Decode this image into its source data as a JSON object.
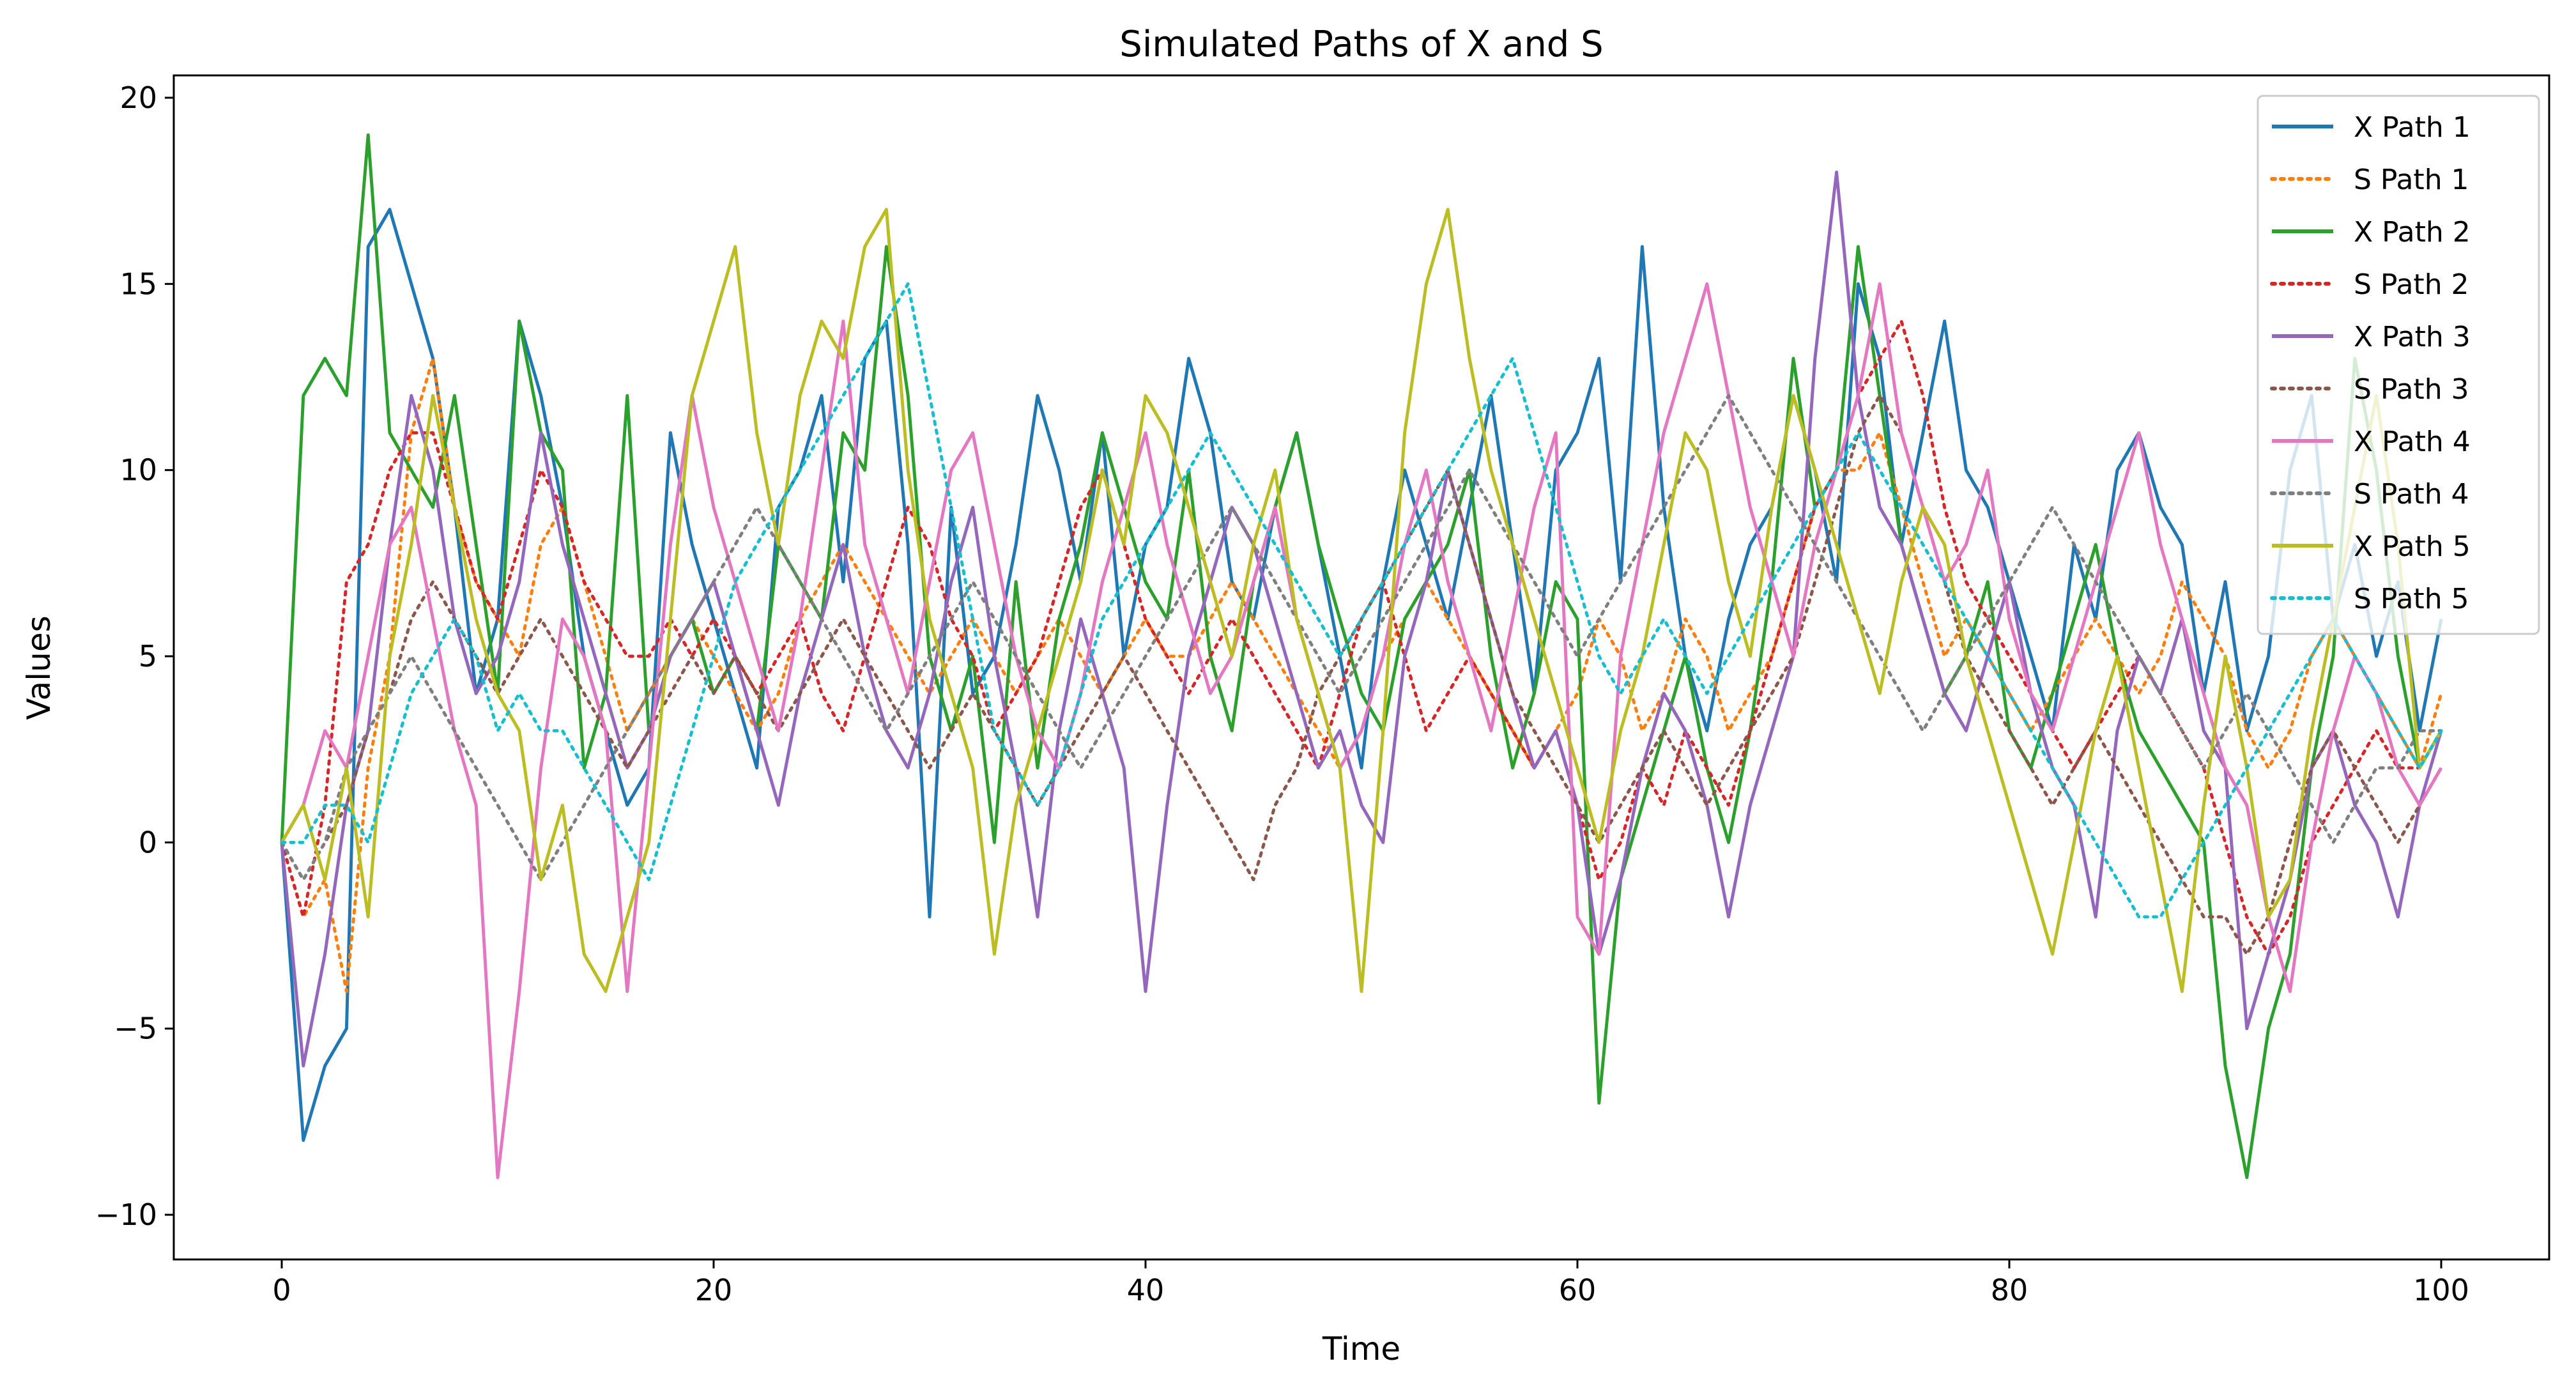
{
  "chart_data": {
    "type": "line",
    "title": "Simulated Paths of X and S",
    "xlabel": "Time",
    "ylabel": "Values",
    "xlim": [
      -5,
      105
    ],
    "ylim": [
      -11.2,
      20.6
    ],
    "xticks": [
      0,
      20,
      40,
      60,
      80,
      100
    ],
    "xtick_labels": [
      "0",
      "20",
      "40",
      "60",
      "80",
      "100"
    ],
    "yticks": [
      -10,
      -5,
      0,
      5,
      10,
      15,
      20
    ],
    "ytick_labels": [
      "−10",
      "−5",
      "0",
      "5",
      "10",
      "15",
      "20"
    ],
    "grid": false,
    "legend": "top-right",
    "x_step": 1,
    "series": [
      {
        "name": "X Path 1",
        "color": "#1f77b4",
        "style": "solid",
        "values": [
          0,
          -8,
          -6,
          -5,
          16,
          17,
          15,
          13,
          9,
          4,
          6,
          14,
          12,
          9,
          5,
          3,
          1,
          2,
          11,
          8,
          6,
          4,
          2,
          9,
          10,
          12,
          7,
          13,
          14,
          8,
          -2,
          9,
          4,
          5,
          8,
          12,
          10,
          7,
          11,
          5,
          8,
          9,
          13,
          11,
          7,
          6,
          9,
          11,
          8,
          5,
          2,
          7,
          10,
          8,
          6,
          9,
          12,
          8,
          4,
          10,
          11,
          13,
          7,
          16,
          9,
          5,
          3,
          6,
          8,
          9,
          12,
          10,
          7,
          15,
          13,
          8,
          11,
          14,
          10,
          9,
          7,
          5,
          3,
          8,
          6,
          10,
          11,
          9,
          8,
          4,
          7,
          3,
          5,
          10,
          12,
          6,
          8,
          5,
          7,
          3,
          6
        ]
      },
      {
        "name": "S Path 1",
        "color": "#ff7f0e",
        "style": "dotted",
        "values": [
          0,
          -2,
          -1,
          -4,
          2,
          5,
          11,
          13,
          9,
          7,
          6,
          5,
          8,
          9,
          7,
          5,
          3,
          4,
          5,
          6,
          5,
          4,
          3,
          4,
          6,
          7,
          8,
          7,
          6,
          5,
          4,
          5,
          6,
          5,
          4,
          5,
          6,
          5,
          4,
          5,
          6,
          5,
          5,
          6,
          7,
          6,
          5,
          4,
          3,
          2,
          3,
          5,
          6,
          7,
          6,
          5,
          4,
          3,
          2,
          3,
          4,
          6,
          5,
          3,
          4,
          6,
          5,
          3,
          4,
          5,
          7,
          9,
          10,
          10,
          11,
          9,
          7,
          5,
          6,
          5,
          4,
          3,
          4,
          5,
          6,
          5,
          4,
          5,
          7,
          6,
          5,
          3,
          2,
          3,
          5,
          6,
          5,
          4,
          3,
          2,
          4
        ]
      },
      {
        "name": "X Path 2",
        "color": "#2ca02c",
        "style": "solid",
        "values": [
          0,
          12,
          13,
          12,
          19,
          11,
          10,
          9,
          12,
          8,
          4,
          14,
          11,
          10,
          2,
          4,
          12,
          3,
          5,
          6,
          4,
          5,
          3,
          8,
          7,
          6,
          11,
          10,
          16,
          12,
          5,
          3,
          5,
          0,
          7,
          2,
          6,
          8,
          11,
          9,
          7,
          6,
          10,
          5,
          3,
          7,
          9,
          11,
          8,
          6,
          4,
          3,
          6,
          7,
          8,
          10,
          5,
          2,
          4,
          7,
          6,
          -7,
          -1,
          1,
          3,
          5,
          2,
          0,
          3,
          7,
          13,
          9,
          10,
          16,
          12,
          8,
          6,
          4,
          5,
          7,
          3,
          2,
          4,
          6,
          8,
          5,
          3,
          2,
          1,
          0,
          -6,
          -9,
          -5,
          -3,
          2,
          5,
          13,
          10,
          5,
          2,
          3
        ]
      },
      {
        "name": "S Path 2",
        "color": "#d62728",
        "style": "dotted",
        "values": [
          0,
          -2,
          1,
          7,
          8,
          10,
          11,
          11,
          9,
          7,
          6,
          8,
          10,
          9,
          7,
          6,
          5,
          5,
          6,
          5,
          6,
          5,
          4,
          5,
          6,
          4,
          3,
          5,
          7,
          9,
          8,
          6,
          5,
          3,
          4,
          5,
          7,
          9,
          10,
          8,
          6,
          5,
          4,
          5,
          6,
          5,
          4,
          3,
          2,
          4,
          6,
          7,
          5,
          3,
          4,
          5,
          4,
          3,
          2,
          3,
          1,
          -1,
          0,
          2,
          1,
          3,
          2,
          1,
          3,
          5,
          7,
          9,
          10,
          12,
          13,
          14,
          12,
          9,
          7,
          6,
          5,
          4,
          3,
          2,
          3,
          4,
          5,
          4,
          3,
          2,
          0,
          -2,
          -3,
          -2,
          0,
          1,
          2,
          3,
          2,
          2,
          3
        ]
      },
      {
        "name": "X Path 3",
        "color": "#9467bd",
        "style": "solid",
        "values": [
          0,
          -6,
          -3,
          1,
          3,
          8,
          12,
          10,
          6,
          4,
          5,
          7,
          11,
          8,
          6,
          4,
          2,
          3,
          5,
          6,
          7,
          5,
          3,
          1,
          4,
          6,
          8,
          5,
          3,
          2,
          4,
          7,
          9,
          5,
          2,
          -2,
          3,
          6,
          4,
          2,
          -4,
          1,
          5,
          7,
          9,
          8,
          6,
          4,
          2,
          3,
          1,
          0,
          5,
          7,
          10,
          8,
          6,
          4,
          2,
          3,
          1,
          -3,
          -1,
          2,
          4,
          3,
          1,
          -2,
          1,
          3,
          5,
          13,
          18,
          12,
          9,
          8,
          6,
          4,
          3,
          5,
          7,
          4,
          2,
          1,
          -2,
          3,
          5,
          4,
          6,
          3,
          2,
          -5,
          -3,
          -1,
          2,
          3,
          1,
          0,
          -2,
          1,
          3
        ]
      },
      {
        "name": "S Path 3",
        "color": "#8c564b",
        "style": "dotted",
        "values": [
          0,
          -1,
          0,
          1,
          3,
          4,
          6,
          7,
          6,
          5,
          4,
          5,
          6,
          5,
          4,
          3,
          2,
          3,
          4,
          5,
          4,
          5,
          4,
          3,
          4,
          5,
          6,
          5,
          4,
          3,
          2,
          3,
          4,
          3,
          2,
          1,
          2,
          3,
          4,
          5,
          4,
          3,
          2,
          1,
          0,
          -1,
          1,
          2,
          4,
          5,
          6,
          7,
          8,
          9,
          10,
          8,
          6,
          4,
          3,
          2,
          1,
          0,
          1,
          2,
          3,
          2,
          1,
          2,
          3,
          4,
          5,
          7,
          9,
          11,
          12,
          11,
          9,
          7,
          5,
          4,
          3,
          2,
          1,
          2,
          3,
          2,
          1,
          0,
          -1,
          -2,
          -2,
          -3,
          -2,
          0,
          2,
          3,
          2,
          1,
          0,
          1,
          2
        ]
      },
      {
        "name": "X Path 4",
        "color": "#e377c2",
        "style": "solid",
        "values": [
          0,
          1,
          3,
          2,
          5,
          8,
          9,
          6,
          3,
          1,
          -9,
          -4,
          2,
          6,
          5,
          3,
          -4,
          2,
          8,
          12,
          9,
          7,
          5,
          3,
          6,
          10,
          14,
          8,
          6,
          4,
          7,
          10,
          11,
          8,
          5,
          3,
          2,
          4,
          7,
          9,
          11,
          8,
          6,
          4,
          5,
          7,
          9,
          6,
          4,
          2,
          3,
          5,
          8,
          10,
          7,
          5,
          3,
          6,
          9,
          11,
          -2,
          -3,
          5,
          8,
          11,
          13,
          15,
          12,
          9,
          7,
          5,
          8,
          10,
          12,
          15,
          11,
          9,
          7,
          8,
          10,
          6,
          4,
          3,
          5,
          7,
          9,
          11,
          8,
          6,
          4,
          2,
          1,
          -2,
          -4,
          0,
          3,
          5,
          4,
          2,
          1,
          2
        ]
      },
      {
        "name": "S Path 4",
        "color": "#7f7f7f",
        "style": "dotted",
        "values": [
          0,
          -1,
          0,
          2,
          3,
          4,
          5,
          4,
          3,
          2,
          1,
          0,
          -1,
          0,
          1,
          2,
          3,
          4,
          5,
          6,
          7,
          8,
          9,
          8,
          7,
          6,
          5,
          4,
          3,
          4,
          5,
          6,
          7,
          6,
          5,
          4,
          3,
          2,
          3,
          4,
          5,
          6,
          7,
          8,
          9,
          8,
          7,
          6,
          5,
          4,
          5,
          6,
          7,
          8,
          9,
          10,
          9,
          8,
          7,
          6,
          5,
          6,
          7,
          8,
          9,
          10,
          11,
          12,
          11,
          10,
          9,
          8,
          7,
          6,
          5,
          4,
          3,
          4,
          5,
          6,
          7,
          8,
          9,
          8,
          7,
          6,
          5,
          4,
          3,
          2,
          3,
          4,
          3,
          2,
          1,
          0,
          1,
          2,
          2,
          3,
          3
        ]
      },
      {
        "name": "X Path 5",
        "color": "#bcbd22",
        "style": "solid",
        "values": [
          0,
          1,
          -1,
          2,
          -2,
          5,
          8,
          12,
          9,
          6,
          4,
          3,
          -1,
          1,
          -3,
          -4,
          -2,
          0,
          6,
          12,
          14,
          16,
          11,
          8,
          12,
          14,
          13,
          16,
          17,
          10,
          6,
          4,
          2,
          -3,
          1,
          3,
          5,
          7,
          10,
          8,
          12,
          11,
          9,
          7,
          5,
          8,
          10,
          6,
          4,
          2,
          -4,
          3,
          11,
          15,
          17,
          13,
          10,
          8,
          6,
          4,
          2,
          0,
          3,
          5,
          8,
          11,
          10,
          7,
          5,
          9,
          12,
          10,
          8,
          6,
          4,
          7,
          9,
          8,
          5,
          3,
          1,
          -1,
          -3,
          0,
          3,
          5,
          2,
          -1,
          -4,
          1,
          5,
          2,
          -2,
          -1,
          3,
          6,
          9,
          12,
          8,
          2,
          3
        ]
      },
      {
        "name": "S Path 5",
        "color": "#17becf",
        "style": "dotted",
        "values": [
          0,
          0,
          1,
          1,
          0,
          2,
          4,
          5,
          6,
          5,
          3,
          4,
          3,
          3,
          2,
          1,
          0,
          -1,
          1,
          3,
          5,
          7,
          8,
          9,
          10,
          11,
          12,
          13,
          14,
          15,
          12,
          9,
          6,
          3,
          2,
          1,
          2,
          4,
          6,
          7,
          8,
          9,
          10,
          11,
          10,
          9,
          8,
          7,
          6,
          5,
          6,
          7,
          8,
          9,
          10,
          11,
          12,
          13,
          11,
          9,
          7,
          5,
          4,
          5,
          6,
          5,
          4,
          5,
          6,
          7,
          8,
          9,
          10,
          11,
          10,
          9,
          8,
          7,
          6,
          5,
          4,
          3,
          2,
          1,
          0,
          -1,
          -2,
          -2,
          -1,
          0,
          1,
          2,
          3,
          4,
          5,
          6,
          5,
          4,
          3,
          2,
          3
        ]
      }
    ]
  }
}
